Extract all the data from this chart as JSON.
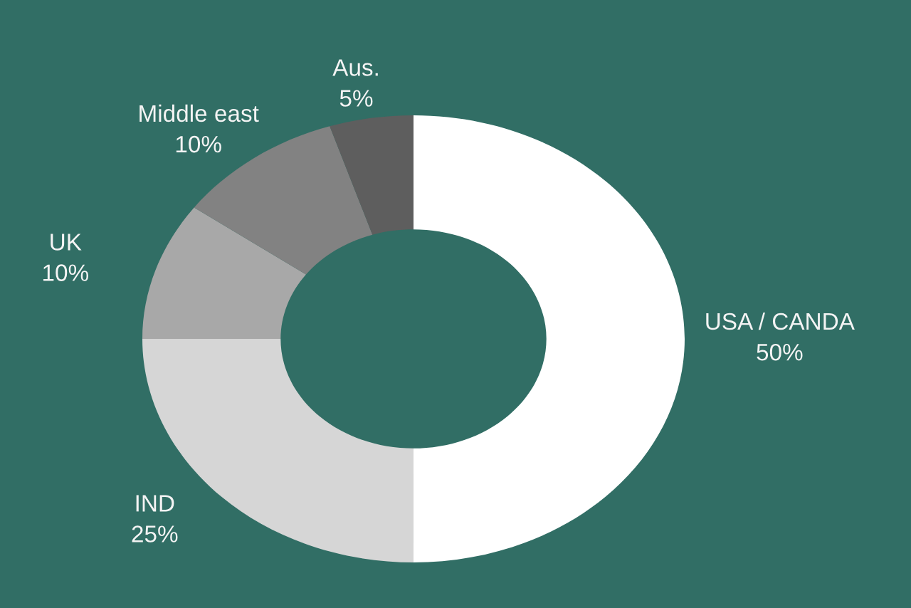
{
  "chart_data": {
    "type": "donut",
    "categories": [
      "USA / CANDA",
      "IND",
      "UK",
      "Middle east",
      "Aus."
    ],
    "values": [
      50,
      25,
      10,
      10,
      5
    ],
    "colors": [
      "#ffffff",
      "#d6d6d6",
      "#a8a8a8",
      "#828282",
      "#5e5e5e"
    ],
    "value_labels": [
      "50%",
      "25%",
      "10%",
      "10%",
      "5%"
    ]
  }
}
